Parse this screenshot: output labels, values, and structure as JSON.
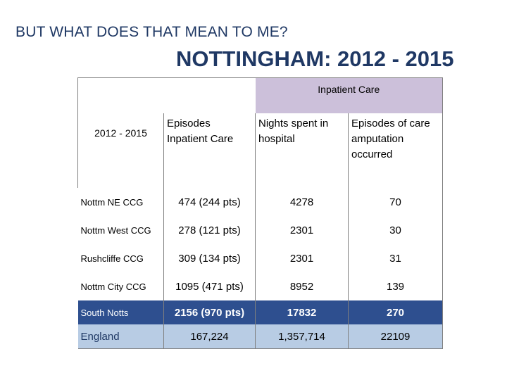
{
  "slide": {
    "kicker": "BUT WHAT DOES THAT MEAN TO ME?",
    "title": "NOTTINGHAM: 2012 - 2015"
  },
  "table": {
    "band_label": "Inpatient Care",
    "period": "2012 - 2015",
    "columns": {
      "episodes": "Episodes Inpatient Care",
      "nights": "Nights spent in hospital",
      "amputation": "Episodes of care amputation occurred"
    },
    "rows": [
      {
        "name": "Nottm NE CCG",
        "episodes": "474 (244 pts)",
        "nights": "4278",
        "amputation": "70"
      },
      {
        "name": "Nottm West CCG",
        "episodes": "278 (121 pts)",
        "nights": "2301",
        "amputation": "30"
      },
      {
        "name": "Rushcliffe CCG",
        "episodes": "309 (134 pts)",
        "nights": "2301",
        "amputation": "31"
      },
      {
        "name": "Nottm City CCG",
        "episodes": "1095 (471 pts)",
        "nights": "8952",
        "amputation": "139"
      },
      {
        "name": "South Notts",
        "episodes": "2156 (970 pts)",
        "nights": "17832",
        "amputation": "270"
      },
      {
        "name": "England",
        "episodes": "167,224",
        "nights": "1,357,714",
        "amputation": "22109"
      }
    ]
  },
  "colors": {
    "title": "#1f3864",
    "header_band": "#ccc0da",
    "south_notts_row": "#2e4f8f",
    "england_row": "#b8cce4"
  }
}
